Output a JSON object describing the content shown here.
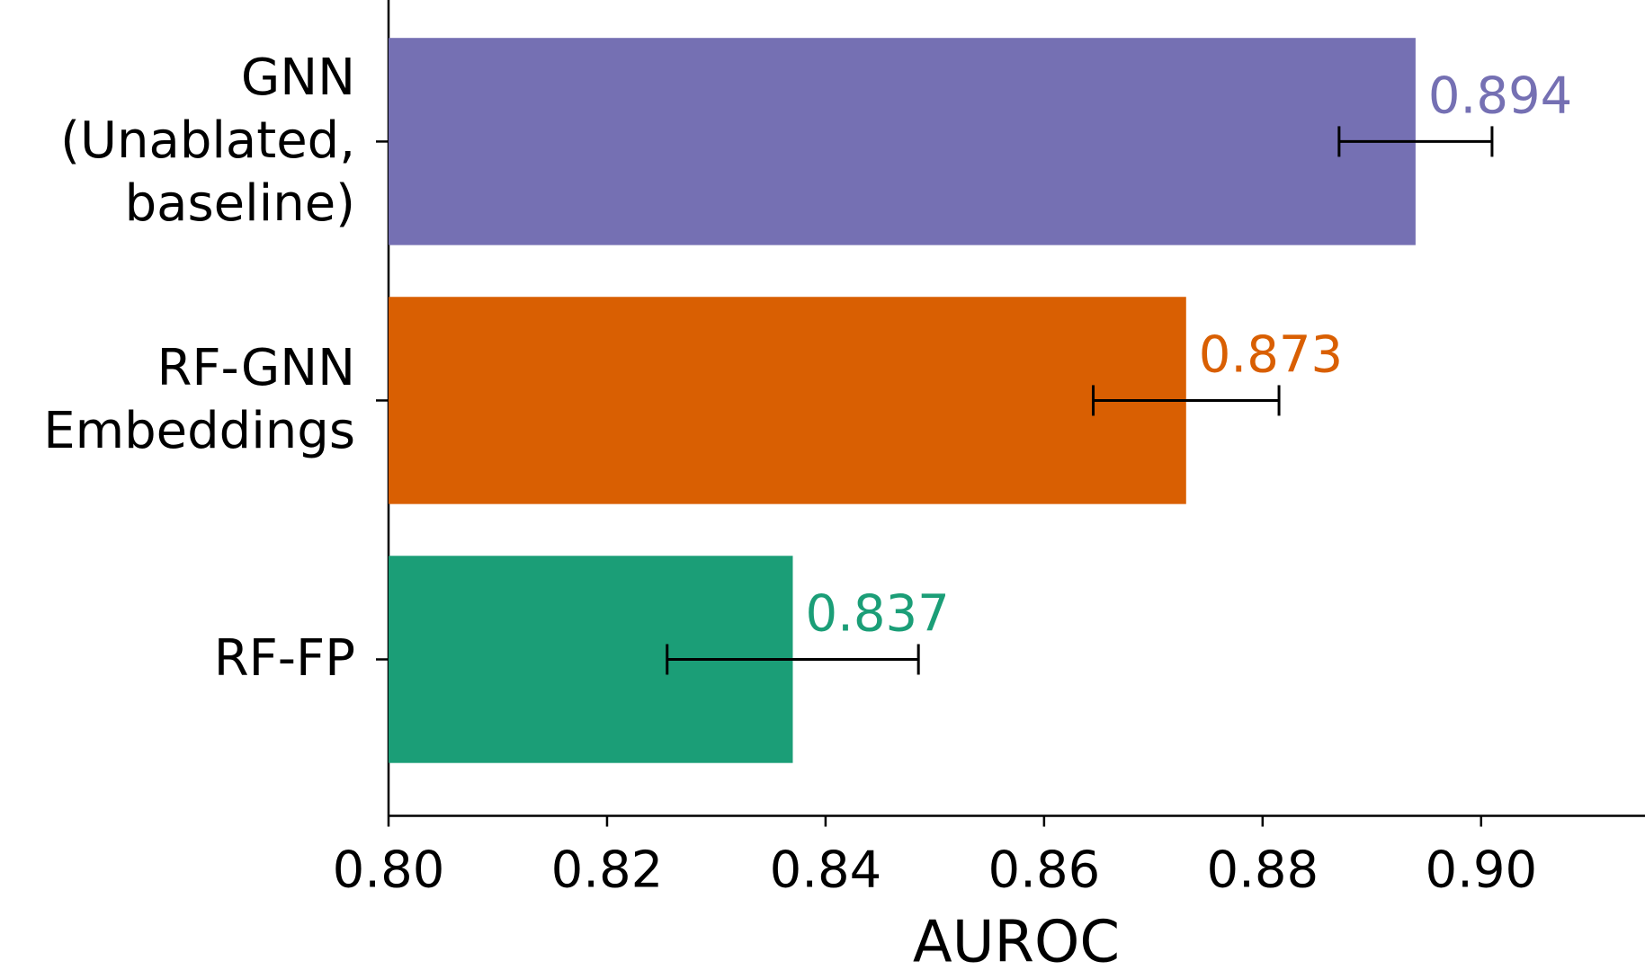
{
  "chart_data": {
    "type": "barh",
    "categories": [
      "GNN\n(Unablated,\nbaseline)",
      "RF-GNN\nEmbeddings",
      "RF-FP"
    ],
    "values": [
      0.894,
      0.873,
      0.837
    ],
    "errors": [
      0.007,
      0.0085,
      0.0115
    ],
    "colors": [
      "#7570b3",
      "#d95f02",
      "#1b9e77"
    ],
    "xlabel": "AUROC",
    "xlim": [
      0.8,
      0.915
    ],
    "xticks": [
      {
        "value": 0.8,
        "label": "0.80"
      },
      {
        "value": 0.82,
        "label": "0.82"
      },
      {
        "value": 0.84,
        "label": "0.84"
      },
      {
        "value": 0.86,
        "label": "0.86"
      },
      {
        "value": 0.88,
        "label": "0.88"
      },
      {
        "value": 0.9,
        "label": "0.90"
      }
    ],
    "grid": false
  }
}
